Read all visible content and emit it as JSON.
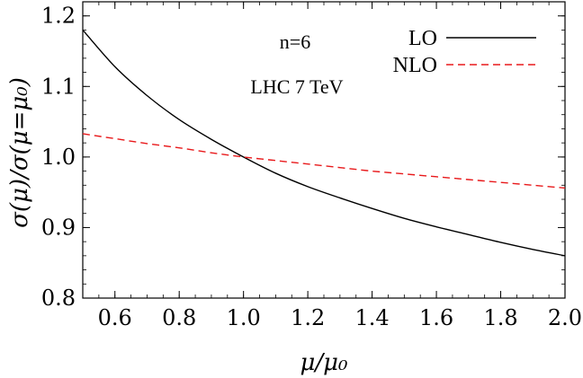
{
  "chart_data": {
    "type": "line",
    "xlabel": "μ/μ₀",
    "ylabel": "σ(μ)/σ(μ=μ₀)",
    "xlim": [
      0.5,
      2.0
    ],
    "ylim": [
      0.8,
      1.22
    ],
    "x_ticks": [
      0.6,
      0.8,
      1.0,
      1.2,
      1.4,
      1.6,
      1.8,
      2.0
    ],
    "x_tick_labels": [
      "0.6",
      "0.8",
      "1.0",
      "1.2",
      "1.4",
      "1.6",
      "1.8",
      "2.0"
    ],
    "y_ticks": [
      0.8,
      0.9,
      1.0,
      1.1,
      1.2
    ],
    "y_tick_labels": [
      "0.8",
      "0.9",
      "1.0",
      "1.1",
      "1.2"
    ],
    "grid": false,
    "legend_position": "top-right",
    "annotations": [
      "n=6",
      "LHC 7 TeV"
    ],
    "series": [
      {
        "name": "LO",
        "color": "#000000",
        "dash": "solid",
        "x": [
          0.5,
          0.6,
          0.7,
          0.8,
          0.9,
          1.0,
          1.1,
          1.2,
          1.3,
          1.4,
          1.5,
          1.6,
          1.7,
          1.8,
          1.9,
          2.0
        ],
        "y": [
          1.18,
          1.128,
          1.087,
          1.053,
          1.025,
          1.0,
          0.977,
          0.958,
          0.942,
          0.927,
          0.913,
          0.901,
          0.89,
          0.879,
          0.869,
          0.86
        ]
      },
      {
        "name": "NLO",
        "color": "#e8191b",
        "dash": "dashed",
        "x": [
          0.5,
          0.6,
          0.7,
          0.8,
          0.9,
          1.0,
          1.1,
          1.2,
          1.3,
          1.4,
          1.5,
          1.6,
          1.7,
          1.8,
          1.9,
          2.0
        ],
        "y": [
          1.033,
          1.026,
          1.019,
          1.013,
          1.006,
          1.0,
          0.995,
          0.99,
          0.985,
          0.98,
          0.976,
          0.972,
          0.968,
          0.964,
          0.96,
          0.956
        ]
      }
    ]
  }
}
